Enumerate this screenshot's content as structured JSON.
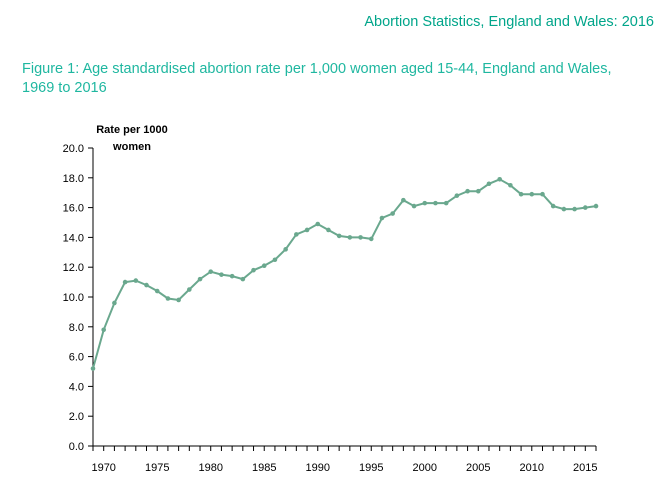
{
  "header": {
    "report_title": "Abortion Statistics, England and Wales: 2016"
  },
  "figure": {
    "title": "Figure 1: Age standardised abortion rate per 1,000 women aged 15-44, England and Wales, 1969 to 2016"
  },
  "colors": {
    "accent": "#00a58a",
    "title": "#1fb7a0",
    "line": "#6aa88e"
  },
  "chart_data": {
    "type": "line",
    "title": "Figure 1: Age standardised abortion rate per 1,000 women aged 15-44, England and Wales, 1969 to 2016",
    "ylabel": "Rate per 1000 women",
    "xlabel": "",
    "xlim": [
      1969,
      2016
    ],
    "ylim": [
      0,
      20
    ],
    "grid": false,
    "legend": "none",
    "y_ticks": [
      "0.0",
      "2.0",
      "4.0",
      "6.0",
      "8.0",
      "10.0",
      "12.0",
      "14.0",
      "16.0",
      "18.0",
      "20.0"
    ],
    "x_ticks": [
      "1970",
      "1975",
      "1980",
      "1985",
      "1990",
      "1995",
      "2000",
      "2005",
      "2010",
      "2015"
    ],
    "series": [
      {
        "x": [
          1969,
          1970,
          1971,
          1972,
          1973,
          1974,
          1975,
          1976,
          1977,
          1978,
          1979,
          1980,
          1981,
          1982,
          1983,
          1984,
          1985,
          1986,
          1987,
          1988,
          1989,
          1990,
          1991,
          1992,
          1993,
          1994,
          1995,
          1996,
          1997,
          1998,
          1999,
          2000,
          2001,
          2002,
          2003,
          2004,
          2005,
          2006,
          2007,
          2008,
          2009,
          2010,
          2011,
          2012,
          2013,
          2014,
          2015,
          2016
        ],
        "y": [
          5.2,
          7.8,
          9.6,
          11.0,
          11.1,
          10.8,
          10.4,
          9.9,
          9.8,
          10.5,
          11.2,
          11.7,
          11.5,
          11.4,
          11.2,
          11.8,
          12.1,
          12.5,
          13.2,
          14.2,
          14.5,
          14.9,
          14.5,
          14.1,
          14.0,
          14.0,
          13.9,
          15.3,
          15.6,
          16.5,
          16.1,
          16.3,
          16.3,
          16.3,
          16.8,
          17.1,
          17.1,
          17.6,
          17.9,
          17.5,
          16.9,
          16.9,
          16.9,
          16.1,
          15.9,
          15.9,
          16.0,
          16.1
        ]
      }
    ]
  }
}
